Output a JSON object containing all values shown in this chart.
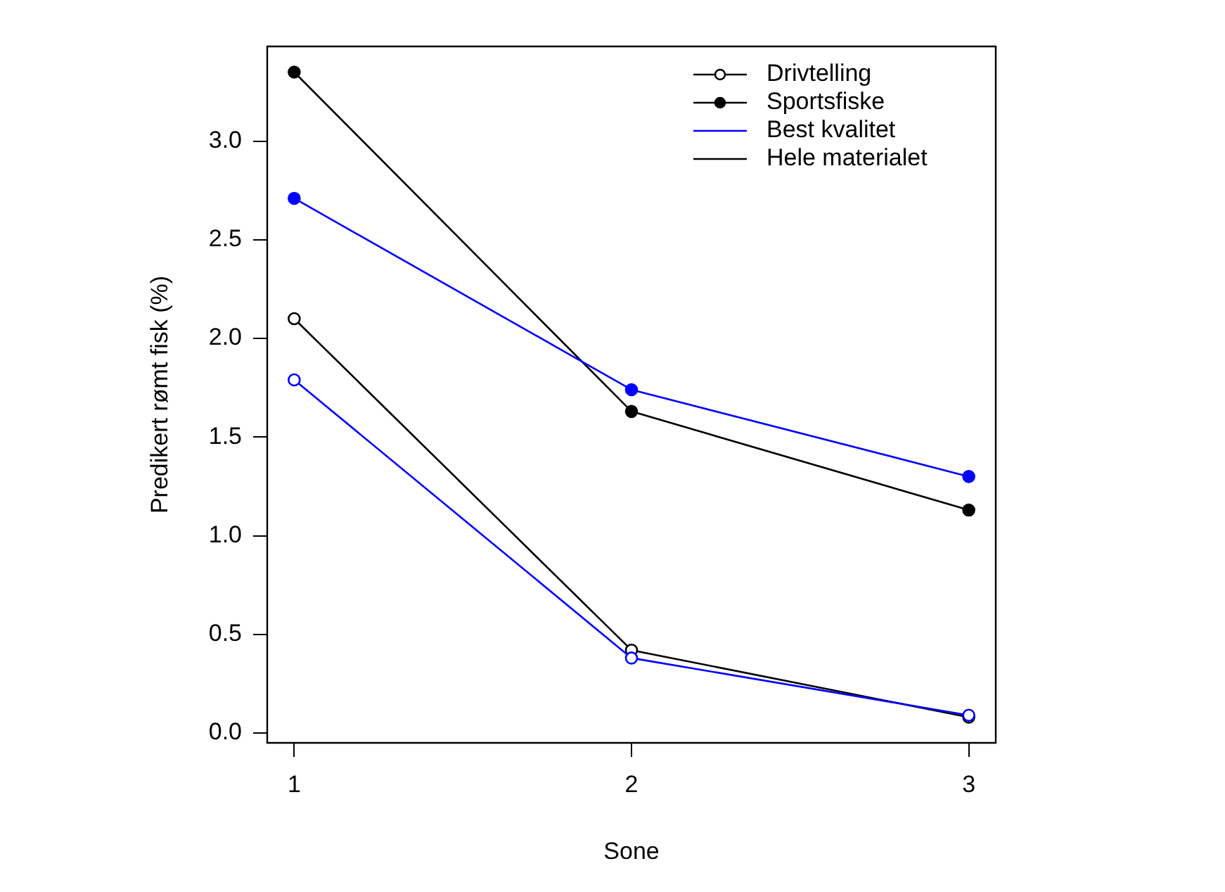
{
  "chart_data": {
    "type": "line",
    "xlabel": "Sone",
    "ylabel": "Predikert rømt fisk (%)",
    "x": [
      1,
      2,
      3
    ],
    "xlim": [
      0.92,
      3.08
    ],
    "xticks": [
      1,
      2,
      3
    ],
    "ylim": [
      -0.05,
      3.48
    ],
    "yticks": [
      {
        "value": 0,
        "label": "0.0"
      },
      {
        "value": 0.5,
        "label": "0.5"
      },
      {
        "value": 1,
        "label": "1.0"
      },
      {
        "value": 1.5,
        "label": "1.5"
      },
      {
        "value": 2,
        "label": "2.0"
      },
      {
        "value": 2.5,
        "label": "2.5"
      },
      {
        "value": 3,
        "label": "3.0"
      }
    ],
    "series": [
      {
        "name": "Drivtelling",
        "color": "#000000",
        "values": [
          2.1,
          0.42,
          0.08
        ]
      },
      {
        "name": "Sportsfiske",
        "color": "#000000",
        "values": [
          3.35,
          1.63,
          1.13
        ]
      },
      {
        "color": "#0000ff",
        "values": [
          1.79,
          0.38,
          0.09
        ]
      },
      {
        "color": "#0000ff",
        "values": [
          2.71,
          1.74,
          1.3
        ]
      }
    ],
    "annotations": [
      "Best kvalitet",
      "Hele materialet"
    ],
    "marker": "circle",
    "legend": "top right",
    "grid": false
  }
}
